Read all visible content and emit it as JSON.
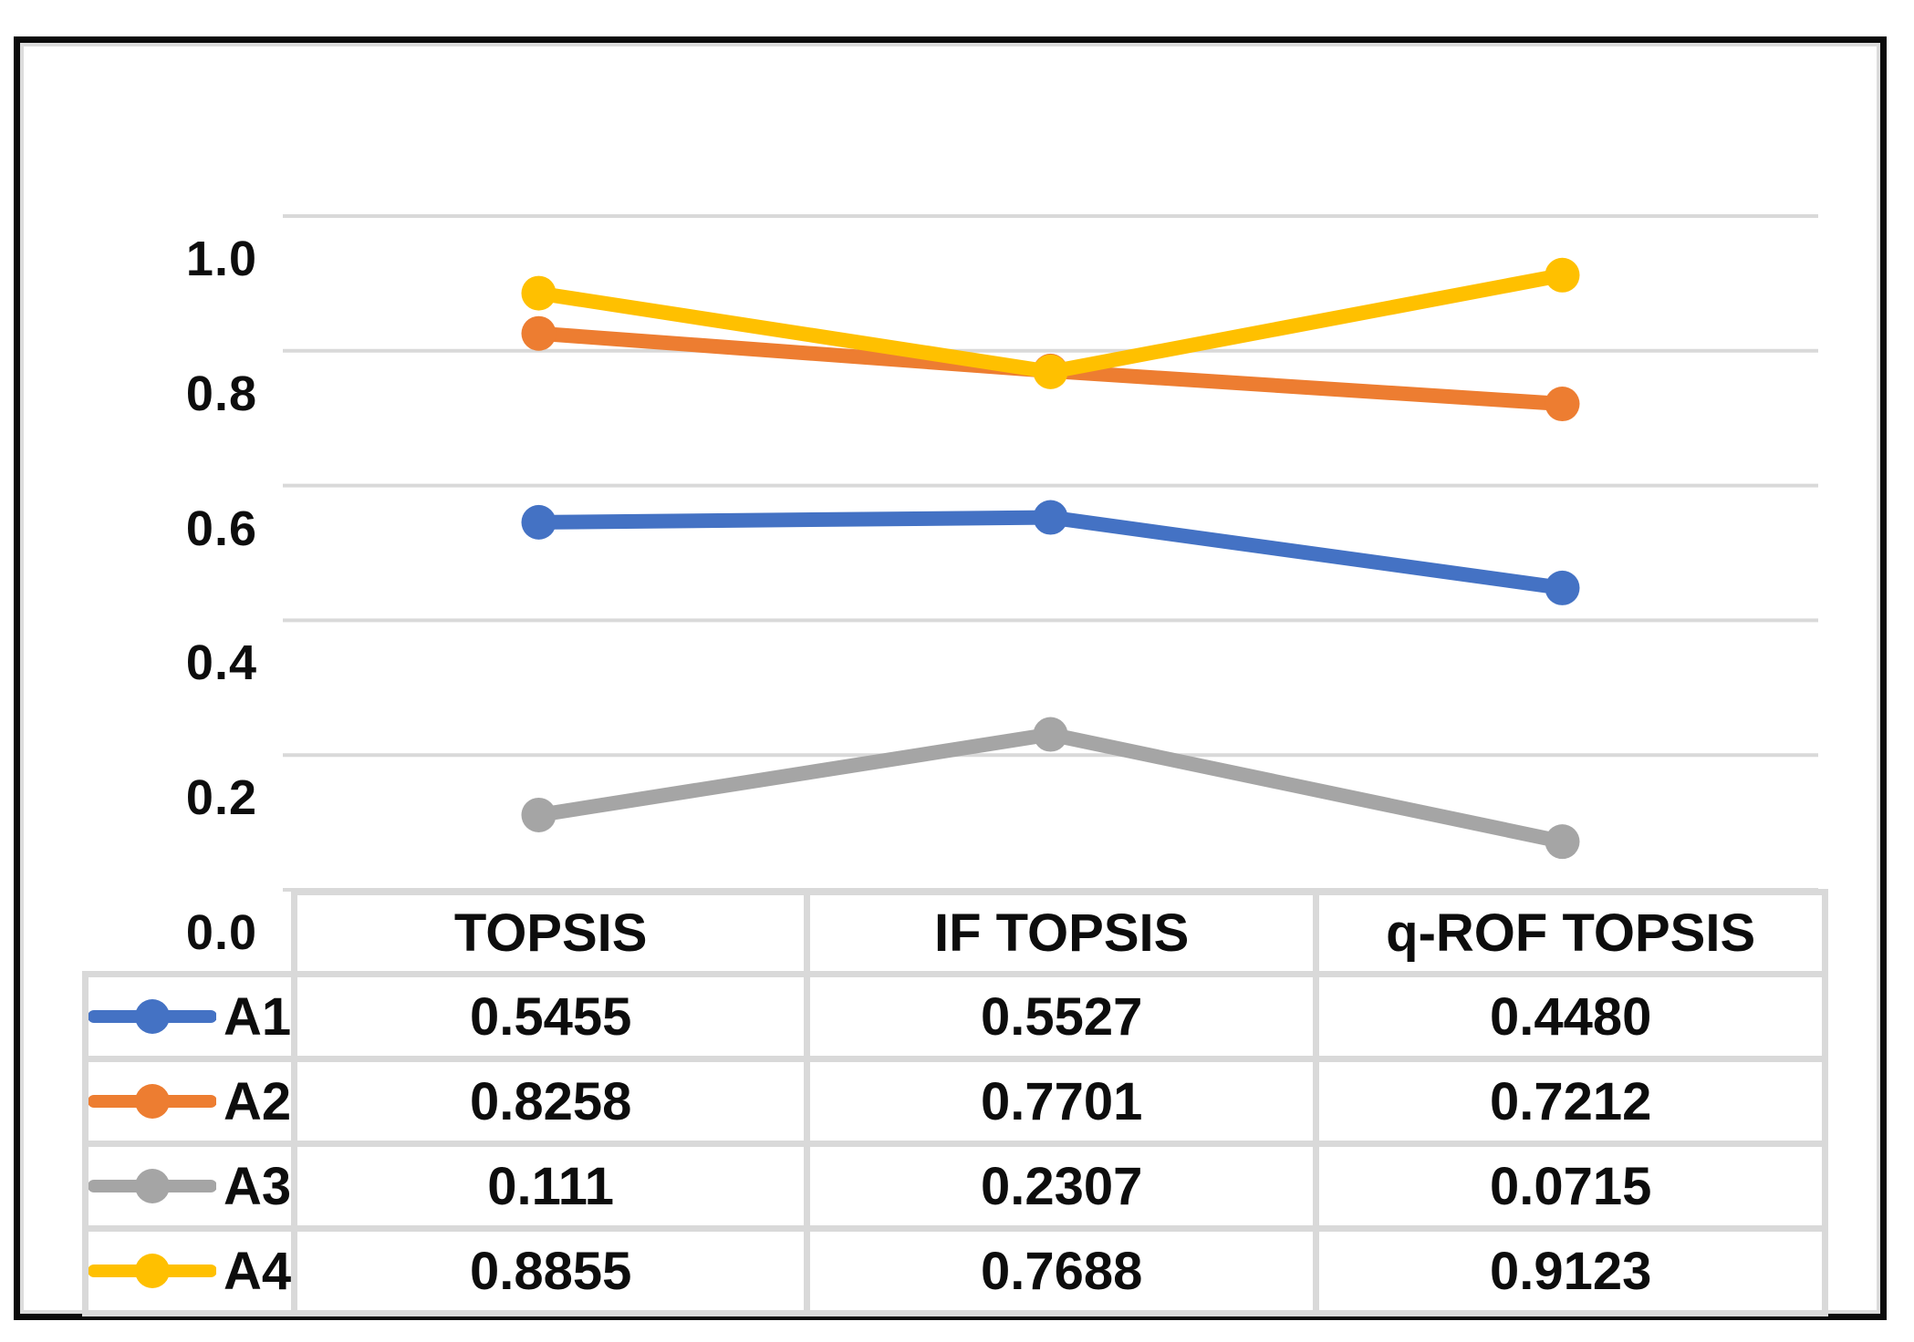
{
  "chart_data": {
    "type": "line",
    "title": "",
    "categories": [
      "TOPSIS",
      "IF TOPSIS",
      "q-ROF TOPSIS"
    ],
    "series": [
      {
        "name": "A1",
        "color": "#4472C4",
        "values": [
          0.5455,
          0.5527,
          0.448
        ],
        "display_values": [
          "0.5455",
          "0.5527",
          "0.4480"
        ]
      },
      {
        "name": "A2",
        "color": "#ED7D31",
        "values": [
          0.8258,
          0.7701,
          0.7212
        ],
        "display_values": [
          "0.8258",
          "0.7701",
          "0.7212"
        ]
      },
      {
        "name": "A3",
        "color": "#A5A5A5",
        "values": [
          0.111,
          0.2307,
          0.0715
        ],
        "display_values": [
          "0.111",
          "0.2307",
          "0.0715"
        ]
      },
      {
        "name": "A4",
        "color": "#FFC000",
        "values": [
          0.8855,
          0.7688,
          0.9123
        ],
        "display_values": [
          "0.8855",
          "0.7688",
          "0.9123"
        ]
      }
    ],
    "xlabel": "",
    "ylabel": "",
    "ylim": [
      0.0,
      1.0
    ],
    "yticks": [
      "1.0",
      "0.8",
      "0.6",
      "0.4",
      "0.2",
      "0.0"
    ],
    "grid": "horizontal-gridlines-on",
    "gridline_color": "#D9D9D9",
    "table_border_color": "#D9D9D9",
    "frame_border_color": "#000000",
    "legend_position": "data-table-row-headers",
    "marker": "circle"
  }
}
